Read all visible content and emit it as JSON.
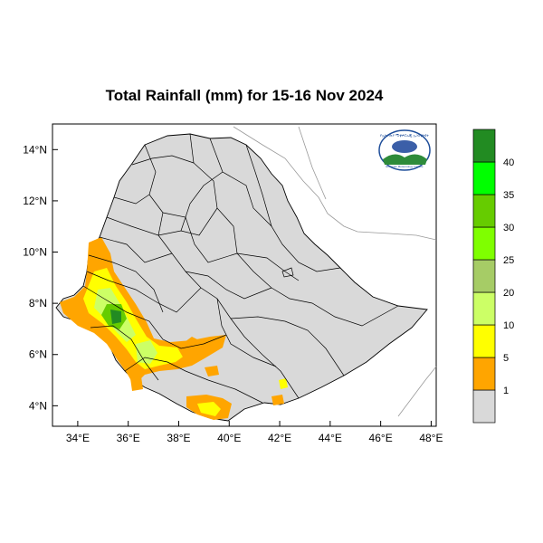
{
  "title": "Total Rainfall (mm) for 15-16 Nov 2024",
  "map": {
    "lon_range": [
      33,
      48.2
    ],
    "lat_range": [
      3.2,
      15
    ],
    "lon_ticks": [
      "34°E",
      "36°E",
      "38°E",
      "40°E",
      "42°E",
      "44°E",
      "46°E",
      "48°E"
    ],
    "lat_ticks": [
      "4°N",
      "6°N",
      "8°N",
      "10°N",
      "12°N",
      "14°N"
    ],
    "land_color": "#d9d9d9",
    "boundary_color": "#000000"
  },
  "legend": {
    "bins": [
      {
        "label": "",
        "color": "#d9d9d9"
      },
      {
        "label": "1",
        "color": "#ffa500"
      },
      {
        "label": "5",
        "color": "#ffff00"
      },
      {
        "label": "10",
        "color": "#ccff66"
      },
      {
        "label": "20",
        "color": "#a6cc66"
      },
      {
        "label": "25",
        "color": "#7fff00"
      },
      {
        "label": "30",
        "color": "#66cc00"
      },
      {
        "label": "35",
        "color": "#00ff00"
      },
      {
        "label": "40",
        "color": "#228b22"
      }
    ]
  },
  "logo": {
    "top_text": "የኢትዮጵያ ሚቲዎሮሎጂ ኢንስቲትዩት",
    "bottom_text": "Ethiopian Meteorology Institute"
  }
}
